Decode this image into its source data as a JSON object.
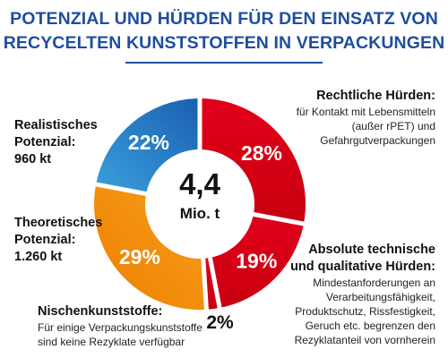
{
  "title_line1": "POTENZIAL UND HÜRDEN FÜR DEN EINSATZ VON",
  "title_line2": "RECYCELTEN KUNSTSTOFFEN IN VERPACKUNGEN",
  "center": {
    "value": "4,4",
    "unit": "Mio. t"
  },
  "labels": {
    "legal": {
      "h": "Rechtliche Hürden:",
      "d1": "für Kontakt mit Lebensmitteln",
      "d2": "(außer rPET) und",
      "d3": "Gefahrgutverpackungen"
    },
    "technical": {
      "h1": "Absolute technische",
      "h2": "und qualitative Hürden:",
      "d1": "Mindestanforderungen an",
      "d2": "Verarbeitungsfähigkeit,",
      "d3": "Produktschutz, Rissfestigkeit,",
      "d4": "Geruch etc. begrenzen den",
      "d5": "Rezyklatanteil von vornherein"
    },
    "niche": {
      "h": "Nischenkunststoffe:",
      "d1": "Für einige Verpackungskunststoffe",
      "d2": "sind keine Rezyklate verfügbar"
    },
    "theoretical": {
      "h1": "Theoretisches",
      "h2": "Potenzial:",
      "h3": "1.260 kt"
    },
    "realistic": {
      "h1": "Realistisches",
      "h2": "Potenzial:",
      "h3": "960 kt"
    }
  },
  "chart_data": {
    "type": "pie",
    "total": "4,4 Mio. t",
    "slices": [
      {
        "label": "Rechtliche Hürden",
        "value": 28,
        "display": "28%",
        "color": "#e30613"
      },
      {
        "label": "Absolute technische und qualitative Hürden",
        "value": 19,
        "display": "19%",
        "color": "#e30613"
      },
      {
        "label": "Nischenkunststoffe",
        "value": 2,
        "display": "2%",
        "color": "#e30613"
      },
      {
        "label": "Theoretisches Potenzial",
        "value": 29,
        "display": "29%",
        "color": "#f39200"
      },
      {
        "label": "Realistisches Potenzial",
        "value": 22,
        "display": "22%",
        "color": "#1d71b8"
      }
    ]
  }
}
